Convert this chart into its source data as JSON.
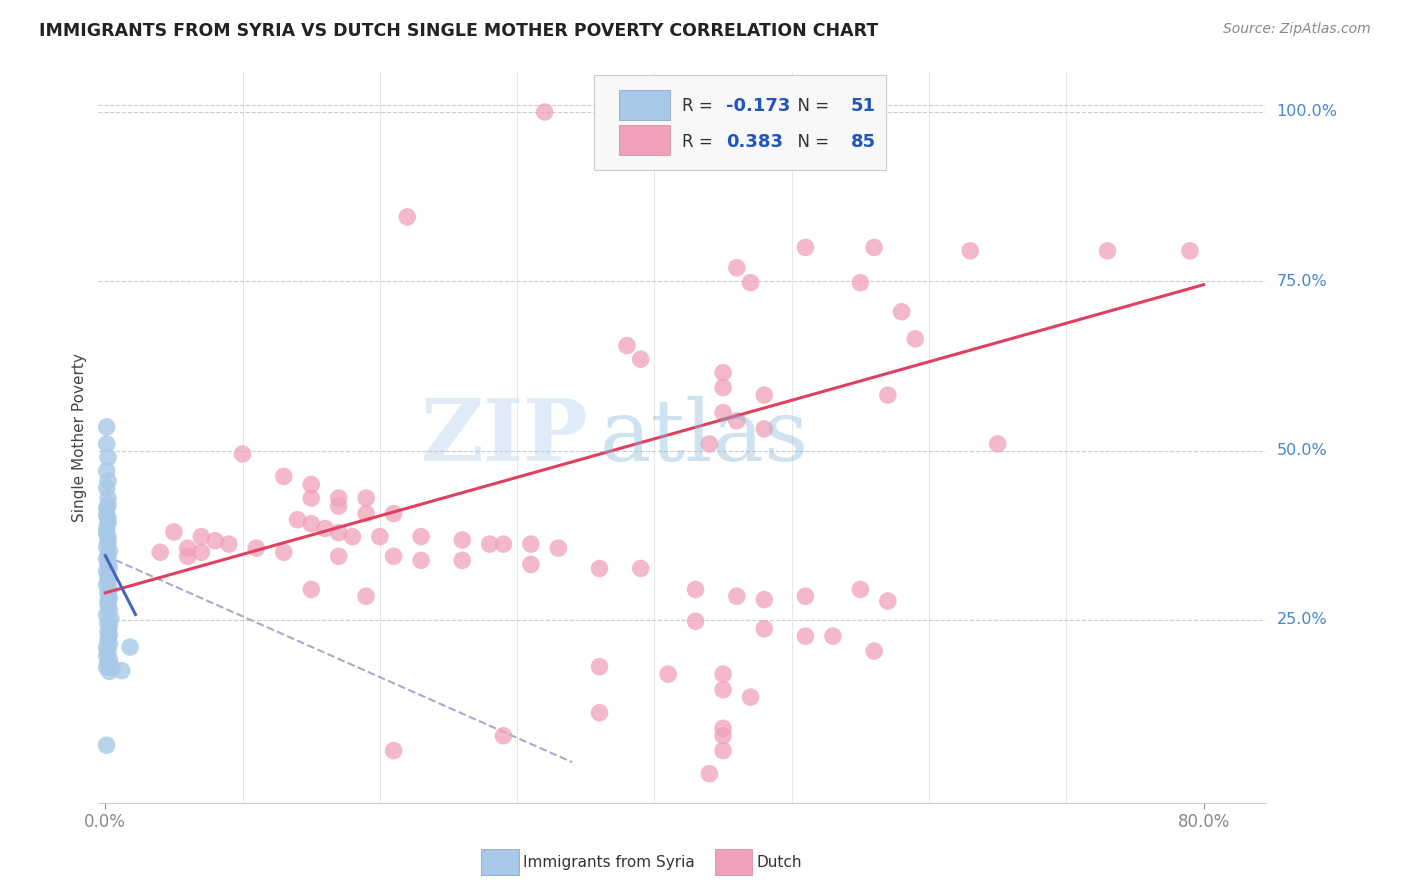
{
  "title": "IMMIGRANTS FROM SYRIA VS DUTCH SINGLE MOTHER POVERTY CORRELATION CHART",
  "source": "Source: ZipAtlas.com",
  "ylabel": "Single Mother Poverty",
  "legend_label_1": "Immigrants from Syria",
  "legend_label_2": "Dutch",
  "R1": -0.173,
  "N1": 51,
  "R2": 0.383,
  "N2": 85,
  "watermark": "ZIPatlas",
  "blue_color": "#a8c8e8",
  "pink_color": "#f0a0b8",
  "blue_line_color": "#4466bb",
  "pink_line_color": "#e04060",
  "dash_color": "#aaaacc",
  "blue_scatter": [
    [
      0.001,
      0.535
    ],
    [
      0.001,
      0.51
    ],
    [
      0.002,
      0.49
    ],
    [
      0.001,
      0.47
    ],
    [
      0.002,
      0.455
    ],
    [
      0.001,
      0.445
    ],
    [
      0.002,
      0.43
    ],
    [
      0.002,
      0.42
    ],
    [
      0.001,
      0.415
    ],
    [
      0.001,
      0.405
    ],
    [
      0.002,
      0.4
    ],
    [
      0.002,
      0.393
    ],
    [
      0.001,
      0.385
    ],
    [
      0.001,
      0.378
    ],
    [
      0.002,
      0.372
    ],
    [
      0.002,
      0.365
    ],
    [
      0.001,
      0.358
    ],
    [
      0.003,
      0.352
    ],
    [
      0.002,
      0.345
    ],
    [
      0.001,
      0.34
    ],
    [
      0.002,
      0.333
    ],
    [
      0.003,
      0.328
    ],
    [
      0.001,
      0.322
    ],
    [
      0.002,
      0.315
    ],
    [
      0.002,
      0.308
    ],
    [
      0.001,
      0.302
    ],
    [
      0.003,
      0.296
    ],
    [
      0.002,
      0.29
    ],
    [
      0.003,
      0.283
    ],
    [
      0.002,
      0.278
    ],
    [
      0.002,
      0.272
    ],
    [
      0.003,
      0.265
    ],
    [
      0.001,
      0.258
    ],
    [
      0.004,
      0.252
    ],
    [
      0.002,
      0.245
    ],
    [
      0.003,
      0.24
    ],
    [
      0.002,
      0.233
    ],
    [
      0.003,
      0.228
    ],
    [
      0.002,
      0.222
    ],
    [
      0.003,
      0.215
    ],
    [
      0.001,
      0.21
    ],
    [
      0.002,
      0.204
    ],
    [
      0.001,
      0.197
    ],
    [
      0.003,
      0.192
    ],
    [
      0.002,
      0.186
    ],
    [
      0.001,
      0.18
    ],
    [
      0.005,
      0.18
    ],
    [
      0.003,
      0.174
    ],
    [
      0.012,
      0.175
    ],
    [
      0.001,
      0.065
    ],
    [
      0.018,
      0.21
    ]
  ],
  "pink_scatter": [
    [
      0.32,
      1.0
    ],
    [
      0.22,
      0.845
    ],
    [
      0.51,
      0.8
    ],
    [
      0.56,
      0.8
    ],
    [
      0.63,
      0.795
    ],
    [
      0.73,
      0.795
    ],
    [
      0.79,
      0.795
    ],
    [
      0.46,
      0.77
    ],
    [
      0.47,
      0.748
    ],
    [
      0.55,
      0.748
    ],
    [
      0.58,
      0.705
    ],
    [
      0.59,
      0.665
    ],
    [
      0.38,
      0.655
    ],
    [
      0.39,
      0.635
    ],
    [
      0.45,
      0.615
    ],
    [
      0.45,
      0.593
    ],
    [
      0.48,
      0.582
    ],
    [
      0.57,
      0.582
    ],
    [
      0.45,
      0.556
    ],
    [
      0.46,
      0.544
    ],
    [
      0.48,
      0.532
    ],
    [
      0.44,
      0.51
    ],
    [
      0.65,
      0.51
    ],
    [
      0.1,
      0.495
    ],
    [
      0.13,
      0.462
    ],
    [
      0.15,
      0.45
    ],
    [
      0.15,
      0.43
    ],
    [
      0.17,
      0.43
    ],
    [
      0.19,
      0.43
    ],
    [
      0.17,
      0.418
    ],
    [
      0.19,
      0.407
    ],
    [
      0.21,
      0.407
    ],
    [
      0.14,
      0.398
    ],
    [
      0.15,
      0.392
    ],
    [
      0.16,
      0.385
    ],
    [
      0.17,
      0.379
    ],
    [
      0.18,
      0.373
    ],
    [
      0.2,
      0.373
    ],
    [
      0.23,
      0.373
    ],
    [
      0.26,
      0.368
    ],
    [
      0.28,
      0.362
    ],
    [
      0.29,
      0.362
    ],
    [
      0.31,
      0.362
    ],
    [
      0.33,
      0.356
    ],
    [
      0.11,
      0.356
    ],
    [
      0.13,
      0.35
    ],
    [
      0.17,
      0.344
    ],
    [
      0.21,
      0.344
    ],
    [
      0.23,
      0.338
    ],
    [
      0.26,
      0.338
    ],
    [
      0.31,
      0.332
    ],
    [
      0.36,
      0.326
    ],
    [
      0.39,
      0.326
    ],
    [
      0.05,
      0.38
    ],
    [
      0.07,
      0.373
    ],
    [
      0.08,
      0.367
    ],
    [
      0.09,
      0.362
    ],
    [
      0.06,
      0.356
    ],
    [
      0.07,
      0.35
    ],
    [
      0.06,
      0.344
    ],
    [
      0.04,
      0.35
    ],
    [
      0.15,
      0.295
    ],
    [
      0.19,
      0.285
    ],
    [
      0.43,
      0.295
    ],
    [
      0.46,
      0.285
    ],
    [
      0.48,
      0.28
    ],
    [
      0.51,
      0.285
    ],
    [
      0.55,
      0.295
    ],
    [
      0.57,
      0.278
    ],
    [
      0.43,
      0.248
    ],
    [
      0.48,
      0.237
    ],
    [
      0.51,
      0.226
    ],
    [
      0.53,
      0.226
    ],
    [
      0.56,
      0.204
    ],
    [
      0.36,
      0.181
    ],
    [
      0.41,
      0.17
    ],
    [
      0.45,
      0.17
    ],
    [
      0.45,
      0.147
    ],
    [
      0.47,
      0.136
    ],
    [
      0.36,
      0.113
    ],
    [
      0.45,
      0.09
    ],
    [
      0.29,
      0.079
    ],
    [
      0.45,
      0.079
    ],
    [
      0.45,
      0.057
    ],
    [
      0.21,
      0.057
    ],
    [
      0.44,
      0.023
    ]
  ],
  "blue_trend_x": [
    0.0,
    0.022
  ],
  "blue_trend_y": [
    0.345,
    0.258
  ],
  "pink_trend_x": [
    0.0,
    0.8
  ],
  "pink_trend_y": [
    0.29,
    0.745
  ],
  "dash_trend_x": [
    0.0,
    0.34
  ],
  "dash_trend_y": [
    0.345,
    0.04
  ],
  "xmin": -0.005,
  "xmax": 0.845,
  "ymin": -0.02,
  "ymax": 1.06,
  "ytick_vals": [
    0.25,
    0.5,
    0.75,
    1.0
  ],
  "ytick_labels": [
    "25.0%",
    "50.0%",
    "75.0%",
    "100.0%"
  ],
  "top_gridline_y": 1.01
}
